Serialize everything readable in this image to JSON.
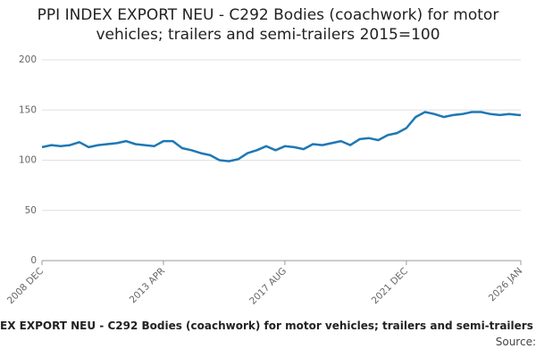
{
  "chart_data": {
    "type": "line",
    "title": "PPI INDEX EXPORT NEU - C292 Bodies (coachwork) for motor vehicles; trailers and semi-trailers 2015=100",
    "caption": "EX EXPORT NEU - C292 Bodies (coachwork) for motor vehicles; trailers and semi-trailers",
    "source": "Source:",
    "x": [
      "2008 DEC",
      "2009 APR",
      "2009 AUG",
      "2009 DEC",
      "2010 APR",
      "2010 AUG",
      "2010 DEC",
      "2011 APR",
      "2011 AUG",
      "2011 DEC",
      "2012 APR",
      "2012 AUG",
      "2012 DEC",
      "2013 APR",
      "2013 AUG",
      "2013 DEC",
      "2014 APR",
      "2014 AUG",
      "2014 DEC",
      "2015 APR",
      "2015 AUG",
      "2015 DEC",
      "2016 APR",
      "2016 AUG",
      "2016 DEC",
      "2017 APR",
      "2017 AUG",
      "2017 DEC",
      "2018 APR",
      "2018 AUG",
      "2018 DEC",
      "2019 APR",
      "2019 AUG",
      "2019 DEC",
      "2020 APR",
      "2020 AUG",
      "2020 DEC",
      "2021 APR",
      "2021 AUG",
      "2021 DEC",
      "2022 APR",
      "2022 AUG",
      "2022 DEC",
      "2023 APR",
      "2023 AUG",
      "2023 DEC",
      "2024 APR",
      "2024 AUG",
      "2024 DEC",
      "2025 APR",
      "2025 AUG",
      "2025 DEC",
      "2026 JAN"
    ],
    "series": [
      {
        "color": "#1f78b4",
        "values": [
          113,
          115,
          114,
          115,
          118,
          113,
          115,
          116,
          117,
          119,
          116,
          115,
          114,
          119,
          119,
          112,
          110,
          107,
          105,
          100,
          99,
          101,
          107,
          110,
          114,
          110,
          114,
          113,
          111,
          116,
          115,
          117,
          119,
          115,
          121,
          122,
          120,
          125,
          127,
          132,
          143,
          148,
          146,
          143,
          145,
          146,
          148,
          148,
          146,
          145,
          146,
          145,
          145
        ]
      }
    ],
    "xticks": [
      "2008 DEC",
      "2013 APR",
      "2017 AUG",
      "2021 DEC",
      "2026 JAN"
    ],
    "ylim": [
      0,
      200
    ],
    "yticks": [
      0,
      50,
      100,
      150,
      200
    ],
    "grid": true
  }
}
